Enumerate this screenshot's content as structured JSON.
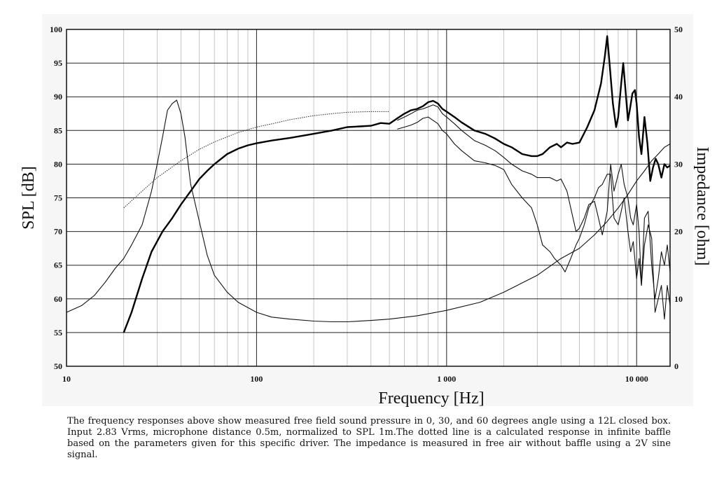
{
  "chart_data": {
    "type": "line",
    "xlabel": "Frequency [Hz]",
    "ylabel": "SPL [dB]",
    "y2label": "Impedance [ohm]",
    "x_scale": "log",
    "xlim": [
      10,
      15000
    ],
    "ylim": [
      50,
      100
    ],
    "y2lim": [
      0,
      50
    ],
    "grid": true,
    "x_ticks": [
      {
        "value": 10,
        "label": "10"
      },
      {
        "value": 100,
        "label": "100"
      },
      {
        "value": 1000,
        "label": "1 000"
      },
      {
        "value": 10000,
        "label": "10 000"
      }
    ],
    "y_ticks": [
      {
        "value": 100,
        "label": "100"
      },
      {
        "value": 95,
        "label": "95"
      },
      {
        "value": 90,
        "label": "90"
      },
      {
        "value": 85,
        "label": "85"
      },
      {
        "value": 80,
        "label": "80"
      },
      {
        "value": 75,
        "label": "75"
      },
      {
        "value": 70,
        "label": "70"
      },
      {
        "value": 65,
        "label": "65"
      },
      {
        "value": 60,
        "label": "60"
      },
      {
        "value": 55,
        "label": "55"
      },
      {
        "value": 50,
        "label": "50"
      }
    ],
    "y2_ticks": [
      {
        "value": 50,
        "label": "50"
      },
      {
        "value": 40,
        "label": "40"
      },
      {
        "value": 30,
        "label": "30"
      },
      {
        "value": 20,
        "label": "20"
      },
      {
        "value": 10,
        "label": "10"
      },
      {
        "value": 0,
        "label": "0"
      }
    ],
    "series": [
      {
        "style": "thick",
        "axis": "left",
        "x": [
          20,
          22,
          25,
          28,
          32,
          36,
          40,
          45,
          50,
          55,
          60,
          70,
          80,
          90,
          100,
          120,
          150,
          200,
          250,
          300,
          350,
          400,
          450,
          500,
          550,
          600,
          650,
          700,
          750,
          800,
          850,
          900,
          950,
          1000,
          1100,
          1200,
          1400,
          1600,
          1800,
          2000,
          2200,
          2500,
          2800,
          3000,
          3200,
          3500,
          3800,
          4000,
          4300,
          4600,
          5000,
          5500,
          6000,
          6500,
          6800,
          7000,
          7200,
          7500,
          7800,
          8000,
          8300,
          8500,
          8800,
          9000,
          9200,
          9500,
          9800,
          10000,
          10300,
          10600,
          11000,
          11400,
          11800,
          12200,
          12600,
          13000,
          13500,
          14000,
          14500,
          15000
        ],
        "values": [
          55,
          58,
          63,
          67,
          70,
          72,
          74,
          76,
          77.8,
          79,
          80,
          81.5,
          82.3,
          82.8,
          83.1,
          83.5,
          83.9,
          84.5,
          85,
          85.5,
          85.6,
          85.7,
          86.1,
          86,
          86.8,
          87.5,
          88,
          88.2,
          88.6,
          89.2,
          89.4,
          89,
          88.2,
          87.8,
          87,
          86.2,
          85,
          84.5,
          83.8,
          83,
          82.5,
          81.5,
          81.2,
          81.2,
          81.5,
          82.5,
          83,
          82.5,
          83.2,
          83,
          83.2,
          85.5,
          88,
          92,
          96,
          99,
          95,
          89,
          85.5,
          87,
          92,
          95,
          90,
          86.5,
          88,
          90.5,
          91,
          89,
          84,
          81.5,
          87,
          83,
          77.5,
          79.5,
          80.8,
          80,
          78,
          80,
          79.5,
          79.8
        ]
      },
      {
        "style": "thin",
        "axis": "left",
        "x": [
          550,
          600,
          650,
          700,
          750,
          800,
          850,
          900,
          950,
          1000,
          1100,
          1200,
          1400,
          1600,
          1800,
          2000,
          2200,
          2500,
          2800,
          3000,
          3200,
          3500,
          3800,
          4000,
          4300,
          4500,
          4800,
          5000,
          5300,
          5600,
          6000,
          6300,
          6600,
          7000,
          7300,
          7600,
          8000,
          8300,
          8600,
          9000,
          9300,
          9600,
          10000,
          10300,
          10600,
          11000,
          11500,
          12000,
          12500,
          13000,
          13500,
          14000,
          14500,
          15000
        ],
        "values": [
          86.5,
          87,
          87.5,
          88,
          88.2,
          88.5,
          88.8,
          88.5,
          87.5,
          87,
          86,
          85,
          83.5,
          82.8,
          82,
          81,
          80,
          79,
          78.5,
          78,
          78,
          78,
          77.5,
          77.8,
          76,
          73.5,
          70,
          70.5,
          72,
          74,
          74.5,
          72,
          69.5,
          73,
          80,
          76,
          78.5,
          80,
          77,
          75,
          72,
          71,
          74,
          70,
          62,
          72,
          73,
          65,
          60,
          63,
          67,
          65,
          68,
          64
        ]
      },
      {
        "style": "thin",
        "axis": "left",
        "x": [
          550,
          600,
          650,
          700,
          750,
          800,
          850,
          900,
          950,
          1000,
          1100,
          1200,
          1400,
          1600,
          1800,
          2000,
          2200,
          2500,
          2800,
          3000,
          3200,
          3500,
          3700,
          4000,
          4200,
          4500,
          4800,
          5000,
          5300,
          5600,
          6000,
          6300,
          6600,
          7000,
          7300,
          7600,
          8000,
          8300,
          8600,
          9000,
          9300,
          9600,
          10000,
          10300,
          10600,
          11000,
          11500,
          12000,
          12500,
          13000,
          13500,
          14000,
          14500,
          15000
        ],
        "values": [
          85.2,
          85.5,
          85.8,
          86.2,
          86.8,
          87,
          86.5,
          86,
          85,
          84.5,
          83,
          82,
          80.5,
          80.2,
          79.8,
          79.2,
          77,
          75,
          73.5,
          71,
          68,
          67,
          66,
          65,
          64,
          66,
          68,
          69,
          71,
          73.5,
          75,
          76.5,
          77,
          78.5,
          78.5,
          72,
          71,
          73,
          75,
          70,
          67,
          68.5,
          63,
          66,
          62,
          68,
          71,
          69,
          58,
          60,
          62,
          57,
          62,
          59
        ]
      },
      {
        "style": "dotted",
        "axis": "left",
        "x": [
          20,
          25,
          30,
          40,
          50,
          60,
          80,
          100,
          130,
          150,
          200,
          250,
          300,
          400,
          500
        ],
        "values": [
          73.5,
          76,
          78,
          80.5,
          82.2,
          83.3,
          84.7,
          85.5,
          86.2,
          86.6,
          87.2,
          87.5,
          87.7,
          87.8,
          87.8
        ]
      },
      {
        "style": "thin",
        "axis": "right",
        "x": [
          10,
          12,
          14,
          16,
          18,
          20,
          22,
          25,
          28,
          30,
          32,
          34,
          36,
          38,
          40,
          42,
          45,
          50,
          55,
          60,
          70,
          80,
          100,
          120,
          150,
          200,
          250,
          300,
          400,
          500,
          700,
          1000,
          1500,
          2000,
          3000,
          4000,
          5000,
          6000,
          7000,
          8000,
          9000,
          10000,
          11000,
          12000,
          13000,
          14000,
          15000
        ],
        "values": [
          8,
          9,
          10.5,
          12.5,
          14.5,
          16,
          18,
          21,
          26,
          30,
          34,
          38,
          39,
          39.5,
          37.5,
          34,
          27,
          21.5,
          16.5,
          13.5,
          11,
          9.5,
          8,
          7.3,
          7,
          6.7,
          6.6,
          6.6,
          6.8,
          7,
          7.5,
          8.3,
          9.5,
          11,
          13.5,
          16,
          17.5,
          19.5,
          21.5,
          23.5,
          25.5,
          27.5,
          29,
          30.5,
          31.5,
          32.5,
          33
        ]
      }
    ]
  },
  "caption": "The frequency responses above show measured free field sound pressure in 0, 30, and 60 degrees angle using a 12L closed box. Input 2.83 Vrms, microphone distance 0.5m, normalized to SPL 1m.The dotted line is a calculated response in infinite baffle based on the parameters given for this specific driver. The impedance is measured in free air without baffle using a 2V sine signal."
}
